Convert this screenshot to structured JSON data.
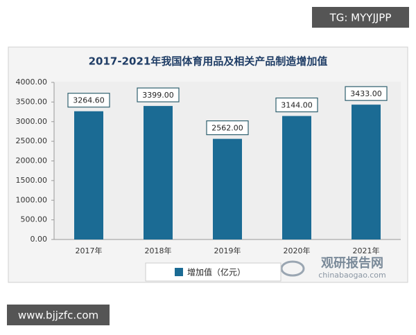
{
  "chart_data": {
    "type": "bar",
    "title": "2017-2021年我国体育用品及相关产品制造增加值",
    "categories": [
      "2017年",
      "2018年",
      "2019年",
      "2020年",
      "2021年"
    ],
    "series": [
      {
        "name": "增加值（亿元）",
        "color": "#1b6b94",
        "values": [
          3264.6,
          3399,
          2562,
          3144,
          3433
        ],
        "value_labels": [
          "3264.60",
          "3399.00",
          "2562.00",
          "3144.00",
          "3433.00"
        ]
      }
    ],
    "ylim": [
      0,
      4000
    ],
    "yticks": [
      {
        "value": 0,
        "label": "0.00"
      },
      {
        "value": 500,
        "label": "500.00"
      },
      {
        "value": 1000,
        "label": "1000.00"
      },
      {
        "value": 1500,
        "label": "1500.00"
      },
      {
        "value": 2000,
        "label": "2000.00"
      },
      {
        "value": 2500,
        "label": "2500.00"
      },
      {
        "value": 3000,
        "label": "3000.00"
      },
      {
        "value": 3500,
        "label": "3500.00"
      },
      {
        "value": 4000,
        "label": "4000.00"
      }
    ],
    "grid": false,
    "legend": "bottom"
  },
  "watermarks": [
    "TG: MYYJJPP",
    "观研报告网",
    "chinabaogao.com",
    "www.bjjzfc.com"
  ]
}
